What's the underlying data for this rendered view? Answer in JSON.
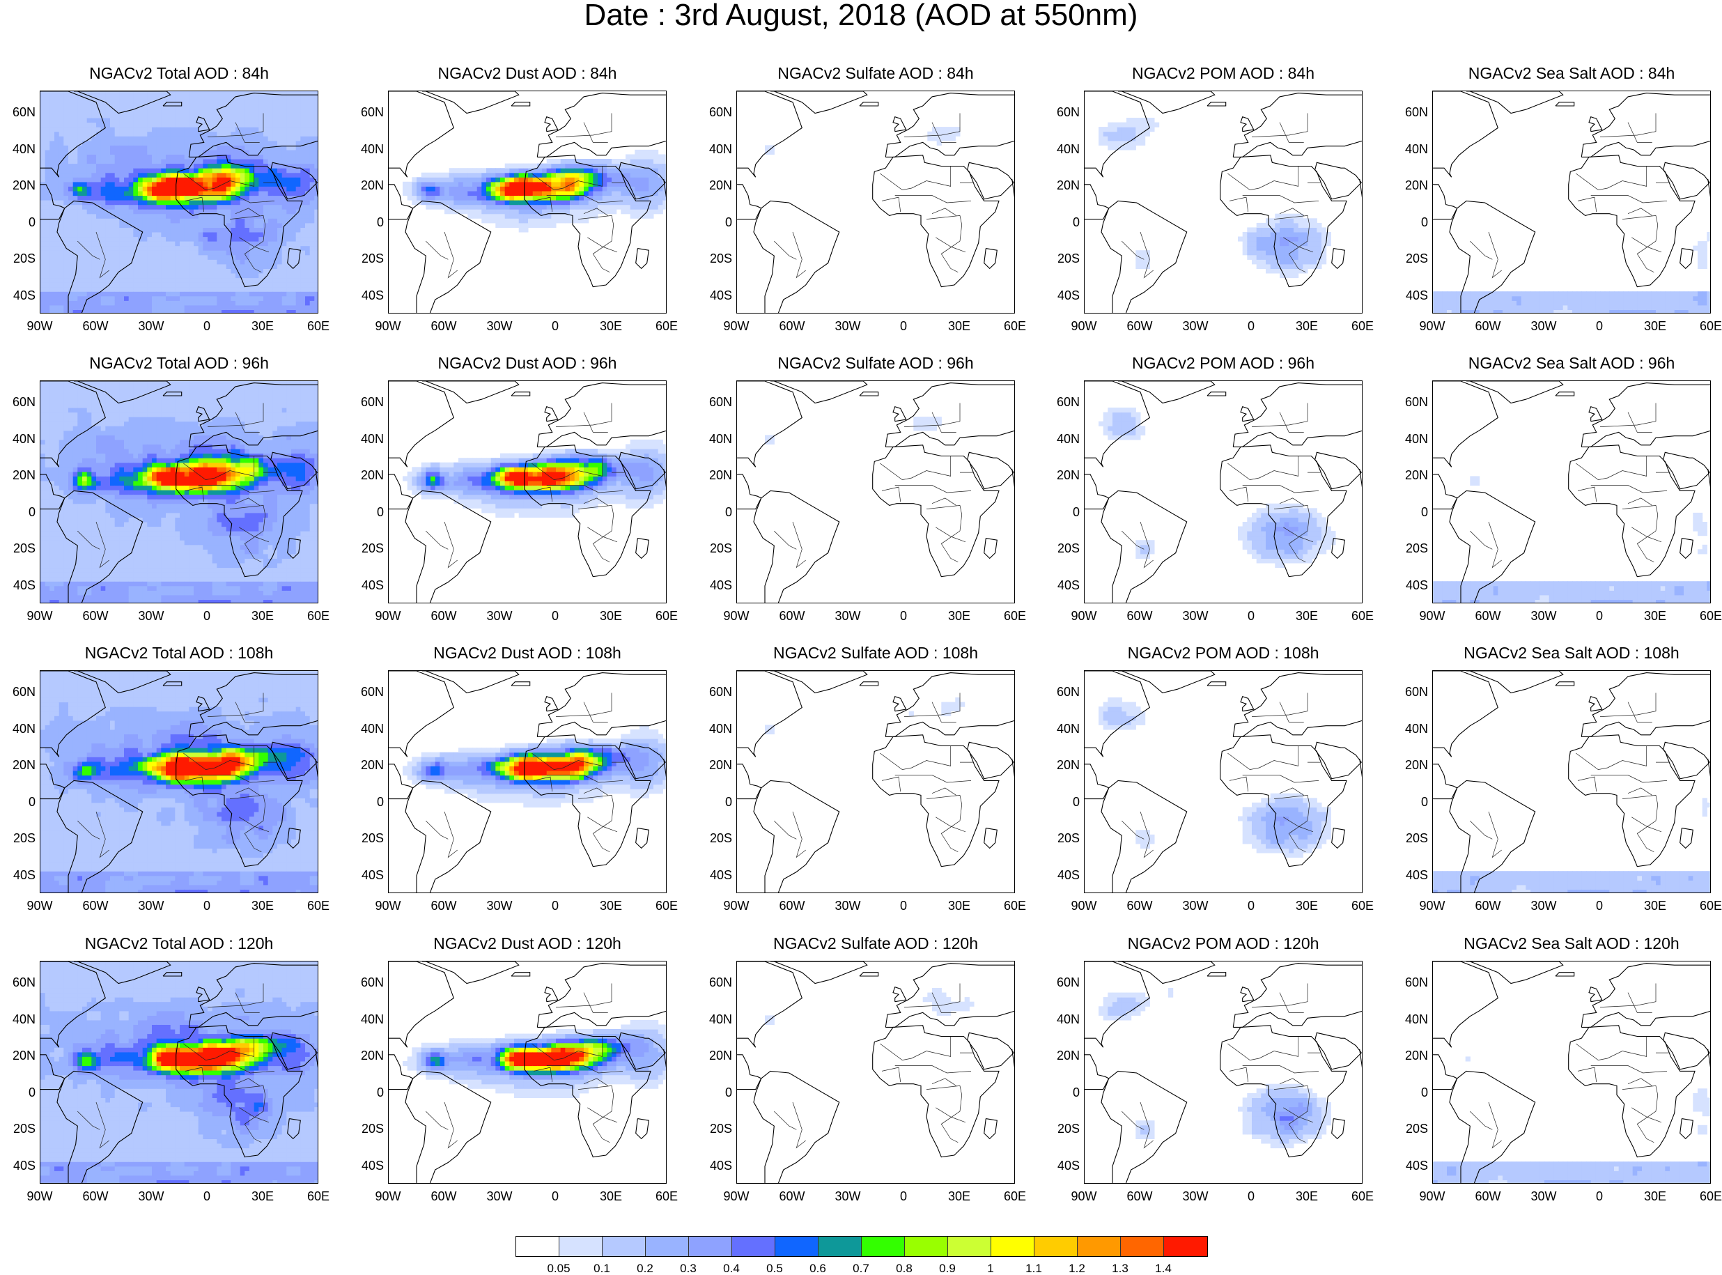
{
  "title": "Date : 3rd August, 2018 (AOD at 550nm)",
  "rows": [
    {
      "panels": [
        {
          "title": "NGACv2 Total AOD : 84h",
          "species": "total"
        },
        {
          "title": "NGACv2 Dust AOD : 84h",
          "species": "dust"
        },
        {
          "title": "NGACv2 Sulfate AOD : 84h",
          "species": "sulfate"
        },
        {
          "title": "NGACv2 POM AOD : 84h",
          "species": "pom"
        },
        {
          "title": "NGACv2 Sea Salt AOD : 84h",
          "species": "seasalt"
        }
      ]
    },
    {
      "panels": [
        {
          "title": "NGACv2 Total AOD : 96h",
          "species": "total"
        },
        {
          "title": "NGACv2 Dust AOD : 96h",
          "species": "dust"
        },
        {
          "title": "NGACv2 Sulfate AOD : 96h",
          "species": "sulfate"
        },
        {
          "title": "NGACv2 POM AOD : 96h",
          "species": "pom"
        },
        {
          "title": "NGACv2 Sea Salt AOD : 96h",
          "species": "seasalt"
        }
      ]
    },
    {
      "panels": [
        {
          "title": "NGACv2 Total AOD : 108h",
          "species": "total"
        },
        {
          "title": "NGACv2 Dust AOD : 108h",
          "species": "dust"
        },
        {
          "title": "NGACv2 Sulfate AOD : 108h",
          "species": "sulfate"
        },
        {
          "title": "NGACv2 POM AOD : 108h",
          "species": "pom"
        },
        {
          "title": "NGACv2 Sea Salt AOD : 108h",
          "species": "seasalt"
        }
      ]
    },
    {
      "panels": [
        {
          "title": "NGACv2 Total AOD : 120h",
          "species": "total"
        },
        {
          "title": "NGACv2 Dust AOD : 120h",
          "species": "dust"
        },
        {
          "title": "NGACv2 Sulfate AOD : 120h",
          "species": "sulfate"
        },
        {
          "title": "NGACv2 POM AOD : 120h",
          "species": "pom"
        },
        {
          "title": "NGACv2 Sea Salt  AOD : 120h",
          "species": "seasalt"
        }
      ]
    }
  ],
  "lat_labels": [
    "60N",
    "40N",
    "20N",
    "0",
    "20S",
    "40S"
  ],
  "lon_labels": [
    "90W",
    "60W",
    "30W",
    "0",
    "30E",
    "60E"
  ],
  "colorbar": {
    "colors": [
      "#ffffff",
      "#d6e2ff",
      "#b5c9ff",
      "#99b3ff",
      "#8ea2ff",
      "#6470ff",
      "#1066ff",
      "#0e9899",
      "#33ff00",
      "#99ff00",
      "#ccff33",
      "#ffff00",
      "#ffcc00",
      "#ff9900",
      "#ff6600",
      "#ff1a00"
    ],
    "labels": [
      "0.05",
      "0.1",
      "0.2",
      "0.3",
      "0.4",
      "0.5",
      "0.6",
      "0.7",
      "0.8",
      "0.9",
      "1",
      "1.1",
      "1.2",
      "1.3",
      "1.4"
    ]
  }
}
